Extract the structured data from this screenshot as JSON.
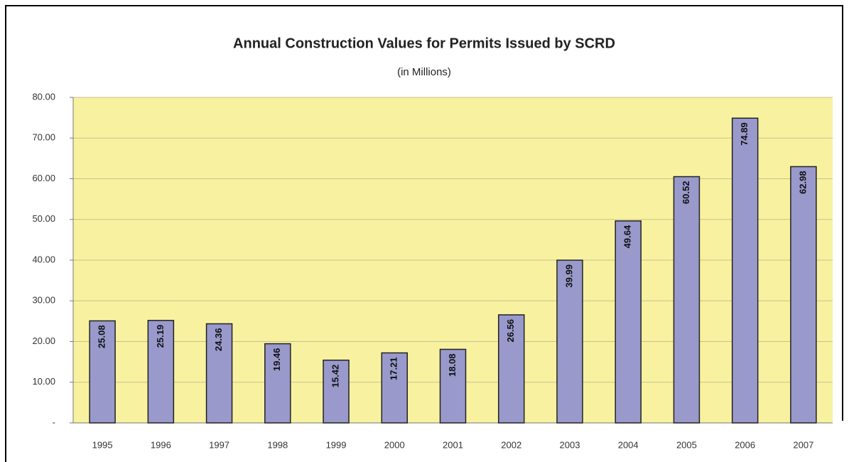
{
  "chart_data": {
    "type": "bar",
    "title": "Annual Construction Values for Permits Issued by SCRD",
    "subtitle": "(in Millions)",
    "categories": [
      "1995",
      "1996",
      "1997",
      "1998",
      "1999",
      "2000",
      "2001",
      "2002",
      "2003",
      "2004",
      "2005",
      "2006",
      "2007"
    ],
    "values": [
      25.08,
      25.19,
      24.36,
      19.46,
      15.42,
      17.21,
      18.08,
      26.56,
      39.99,
      49.64,
      60.52,
      74.89,
      62.98
    ],
    "color": "#9999cc",
    "ylim": [
      0,
      80
    ],
    "yticks": [
      {
        "value": 0,
        "label": "-"
      },
      {
        "value": 10,
        "label": "10.00"
      },
      {
        "value": 20,
        "label": "20.00"
      },
      {
        "value": 30,
        "label": "30.00"
      },
      {
        "value": 40,
        "label": "40.00"
      },
      {
        "value": 50,
        "label": "50.00"
      },
      {
        "value": 60,
        "label": "60.00"
      },
      {
        "value": 70,
        "label": "70.00"
      },
      {
        "value": 80,
        "label": "80.00"
      }
    ],
    "grid": true
  }
}
